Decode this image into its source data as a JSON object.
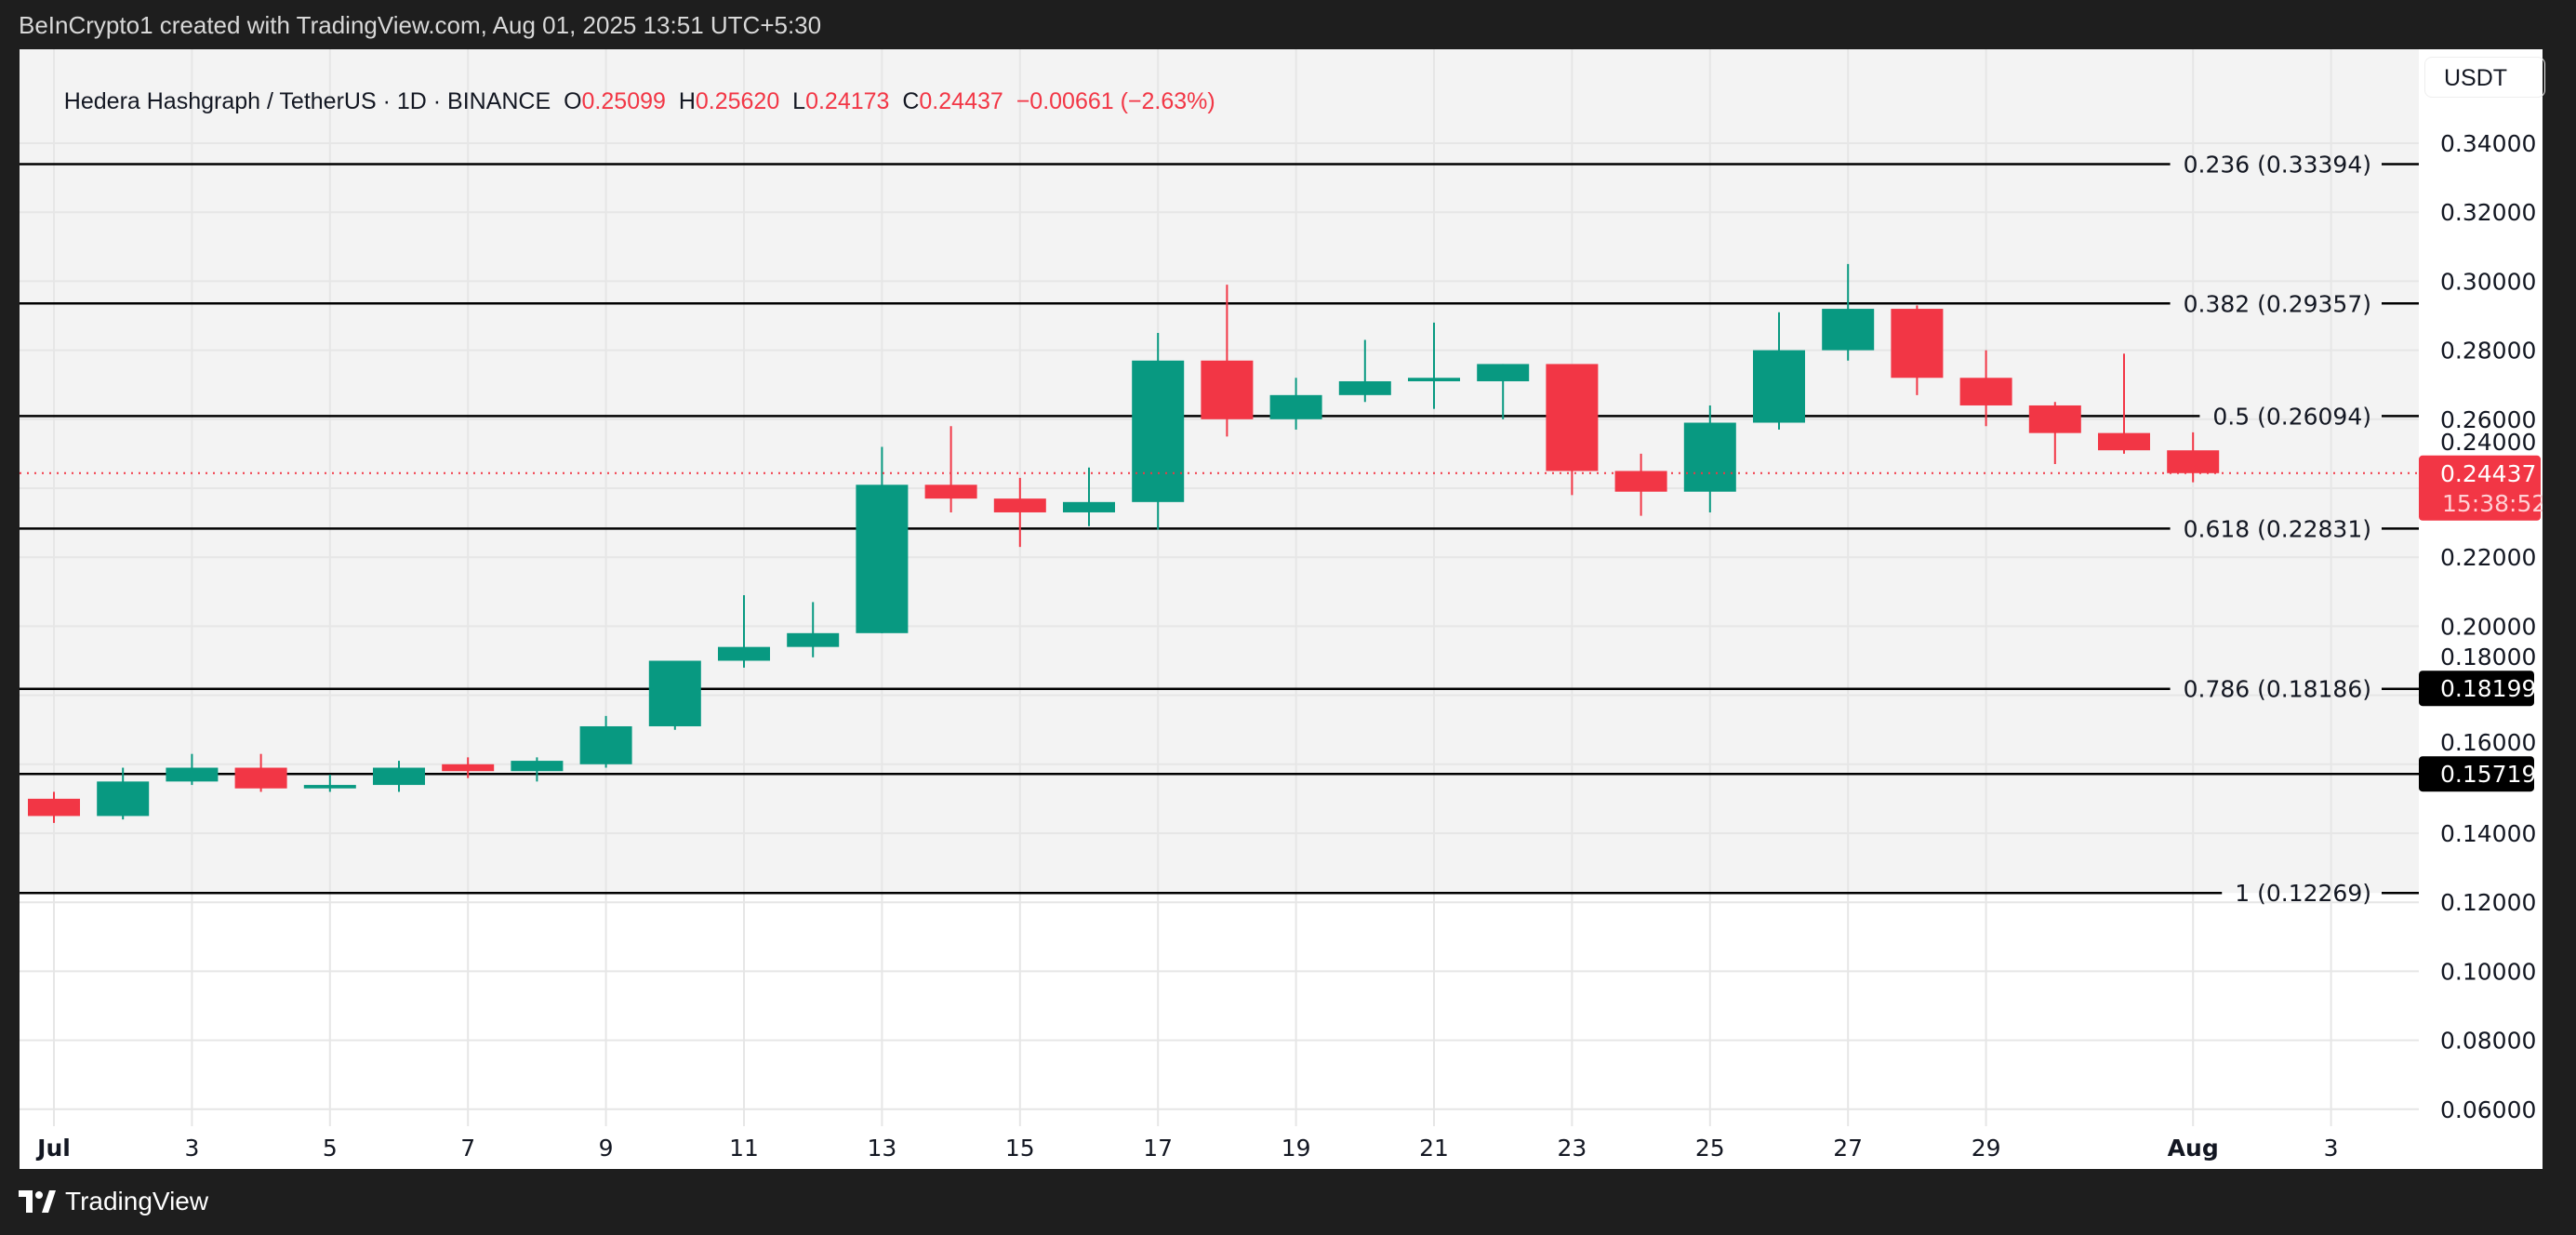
{
  "header": {
    "attribution": "BeInCrypto1 created with TradingView.com, Aug 01, 2025 13:51 UTC+5:30"
  },
  "legend": {
    "symbol": "Hedera Hashgraph / TetherUS · 1D · BINANCE",
    "o_label": "O",
    "o": "0.25099",
    "h_label": "H",
    "h": "0.25620",
    "l_label": "L",
    "l": "0.24173",
    "c_label": "C",
    "c": "0.24437",
    "change": "−0.00661 (−2.63%)"
  },
  "currency_button": "USDT",
  "footer": {
    "logo_text": "TradingView"
  },
  "colors": {
    "up": "#089981",
    "down": "#f23645",
    "fib_line": "#000000",
    "shaded_bg": "#f3f3f3"
  },
  "chart_data": {
    "type": "candlestick",
    "ylim": [
      0.06,
      0.35
    ],
    "y_ticks": [
      "0.34000",
      "0.32000",
      "0.30000",
      "0.28000",
      "0.26000",
      "0.24000",
      "0.22000",
      "0.20000",
      "0.18000",
      "0.16000",
      "0.14000",
      "0.12000",
      "0.10000",
      "0.08000",
      "0.06000"
    ],
    "x_tick_labels": [
      {
        "date": "Jul 1",
        "label": "Jul",
        "bold": true
      },
      {
        "date": "Jul 3",
        "label": "3"
      },
      {
        "date": "Jul 5",
        "label": "5"
      },
      {
        "date": "Jul 7",
        "label": "7"
      },
      {
        "date": "Jul 9",
        "label": "9"
      },
      {
        "date": "Jul 11",
        "label": "11"
      },
      {
        "date": "Jul 13",
        "label": "13"
      },
      {
        "date": "Jul 15",
        "label": "15"
      },
      {
        "date": "Jul 17",
        "label": "17"
      },
      {
        "date": "Jul 19",
        "label": "19"
      },
      {
        "date": "Jul 21",
        "label": "21"
      },
      {
        "date": "Jul 23",
        "label": "23"
      },
      {
        "date": "Jul 25",
        "label": "25"
      },
      {
        "date": "Jul 27",
        "label": "27"
      },
      {
        "date": "Jul 29",
        "label": "29"
      },
      {
        "date": "Aug 1",
        "label": "Aug",
        "bold": true
      },
      {
        "date": "Aug 3",
        "label": "3"
      }
    ],
    "candles": [
      {
        "date": "Jul 1",
        "o": 0.15,
        "h": 0.152,
        "l": 0.143,
        "c": 0.145
      },
      {
        "date": "Jul 2",
        "o": 0.145,
        "h": 0.159,
        "l": 0.144,
        "c": 0.155
      },
      {
        "date": "Jul 3",
        "o": 0.155,
        "h": 0.163,
        "l": 0.154,
        "c": 0.159
      },
      {
        "date": "Jul 4",
        "o": 0.159,
        "h": 0.163,
        "l": 0.152,
        "c": 0.153
      },
      {
        "date": "Jul 5",
        "o": 0.153,
        "h": 0.157,
        "l": 0.152,
        "c": 0.154
      },
      {
        "date": "Jul 6",
        "o": 0.154,
        "h": 0.161,
        "l": 0.152,
        "c": 0.159
      },
      {
        "date": "Jul 7",
        "o": 0.16,
        "h": 0.162,
        "l": 0.156,
        "c": 0.158
      },
      {
        "date": "Jul 8",
        "o": 0.158,
        "h": 0.162,
        "l": 0.155,
        "c": 0.161
      },
      {
        "date": "Jul 9",
        "o": 0.16,
        "h": 0.174,
        "l": 0.159,
        "c": 0.171
      },
      {
        "date": "Jul 10",
        "o": 0.171,
        "h": 0.19,
        "l": 0.17,
        "c": 0.19
      },
      {
        "date": "Jul 11",
        "o": 0.19,
        "h": 0.209,
        "l": 0.188,
        "c": 0.194
      },
      {
        "date": "Jul 12",
        "o": 0.194,
        "h": 0.207,
        "l": 0.191,
        "c": 0.198
      },
      {
        "date": "Jul 13",
        "o": 0.198,
        "h": 0.252,
        "l": 0.198,
        "c": 0.241
      },
      {
        "date": "Jul 14",
        "o": 0.241,
        "h": 0.258,
        "l": 0.233,
        "c": 0.237
      },
      {
        "date": "Jul 15",
        "o": 0.237,
        "h": 0.243,
        "l": 0.223,
        "c": 0.233
      },
      {
        "date": "Jul 16",
        "o": 0.233,
        "h": 0.246,
        "l": 0.229,
        "c": 0.236
      },
      {
        "date": "Jul 17",
        "o": 0.236,
        "h": 0.285,
        "l": 0.228,
        "c": 0.277
      },
      {
        "date": "Jul 18",
        "o": 0.277,
        "h": 0.299,
        "l": 0.255,
        "c": 0.26
      },
      {
        "date": "Jul 19",
        "o": 0.26,
        "h": 0.272,
        "l": 0.257,
        "c": 0.267
      },
      {
        "date": "Jul 20",
        "o": 0.267,
        "h": 0.283,
        "l": 0.265,
        "c": 0.271
      },
      {
        "date": "Jul 21",
        "o": 0.271,
        "h": 0.288,
        "l": 0.263,
        "c": 0.272
      },
      {
        "date": "Jul 22",
        "o": 0.271,
        "h": 0.276,
        "l": 0.26,
        "c": 0.276
      },
      {
        "date": "Jul 23",
        "o": 0.276,
        "h": 0.276,
        "l": 0.238,
        "c": 0.245
      },
      {
        "date": "Jul 24",
        "o": 0.245,
        "h": 0.25,
        "l": 0.232,
        "c": 0.239
      },
      {
        "date": "Jul 25",
        "o": 0.239,
        "h": 0.264,
        "l": 0.233,
        "c": 0.259
      },
      {
        "date": "Jul 26",
        "o": 0.259,
        "h": 0.291,
        "l": 0.257,
        "c": 0.28
      },
      {
        "date": "Jul 27",
        "o": 0.28,
        "h": 0.305,
        "l": 0.277,
        "c": 0.292
      },
      {
        "date": "Jul 28",
        "o": 0.292,
        "h": 0.293,
        "l": 0.267,
        "c": 0.272
      },
      {
        "date": "Jul 29",
        "o": 0.272,
        "h": 0.28,
        "l": 0.258,
        "c": 0.264
      },
      {
        "date": "Jul 30",
        "o": 0.264,
        "h": 0.265,
        "l": 0.247,
        "c": 0.256
      },
      {
        "date": "Jul 31",
        "o": 0.256,
        "h": 0.279,
        "l": 0.25,
        "c": 0.251
      },
      {
        "date": "Aug 1",
        "o": 0.25099,
        "h": 0.2562,
        "l": 0.24173,
        "c": 0.24437
      }
    ],
    "fib_levels": [
      {
        "ratio": "0.236",
        "price": 0.33394,
        "label": "0.236 (0.33394)"
      },
      {
        "ratio": "0.382",
        "price": 0.29357,
        "label": "0.382 (0.29357)"
      },
      {
        "ratio": "0.5",
        "price": 0.26094,
        "label": "0.5 (0.26094)"
      },
      {
        "ratio": "0.618",
        "price": 0.22831,
        "label": "0.618 (0.22831)"
      },
      {
        "ratio": "0.786",
        "price": 0.18186,
        "label": "0.786 (0.18186)"
      },
      {
        "ratio": "1",
        "price": 0.12269,
        "label": "1 (0.12269)"
      }
    ],
    "horizontal_line": {
      "price": 0.15719
    },
    "axis_badges": [
      {
        "price": 0.18199,
        "text": "0.18199"
      },
      {
        "price": 0.15719,
        "text": "0.15719"
      }
    ],
    "last_price": {
      "price": 0.24437,
      "text": "0.24437",
      "countdown": "15:38:52"
    }
  }
}
